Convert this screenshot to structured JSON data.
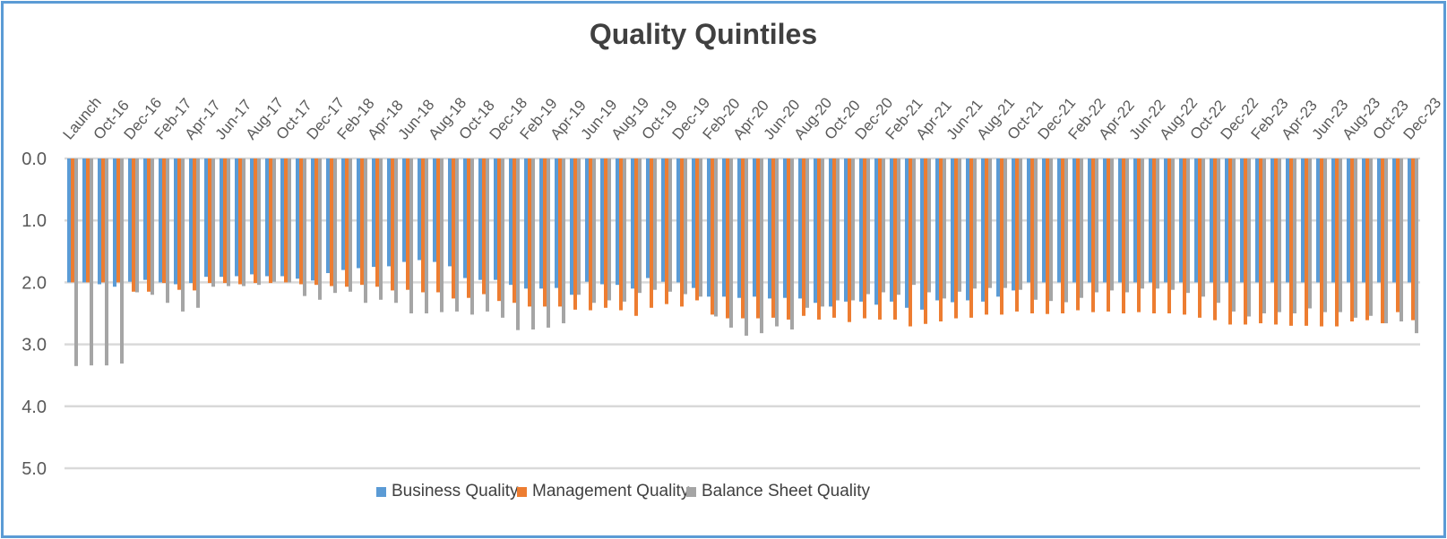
{
  "chart_data": {
    "type": "bar",
    "title": "Quality Quintiles",
    "xlabel": "",
    "ylabel": "",
    "ylim": [
      0,
      5
    ],
    "y_inverted": true,
    "y_ticks": [
      "0.0",
      "1.0",
      "2.0",
      "3.0",
      "4.0",
      "5.0"
    ],
    "grid": true,
    "legend_position": "bottom",
    "group_count": 89,
    "label_every": 2,
    "tick_labels": [
      "Launch",
      "Oct-16",
      "Dec-16",
      "Feb-17",
      "Apr-17",
      "Jun-17",
      "Aug-17",
      "Oct-17",
      "Dec-17",
      "Feb-18",
      "Apr-18",
      "Jun-18",
      "Aug-18",
      "Oct-18",
      "Dec-18",
      "Feb-19",
      "Apr-19",
      "Jun-19",
      "Aug-19",
      "Oct-19",
      "Dec-19",
      "Feb-20",
      "Apr-20",
      "Jun-20",
      "Aug-20",
      "Oct-20",
      "Dec-20",
      "Feb-21",
      "Apr-21",
      "Jun-21",
      "Aug-21",
      "Oct-21",
      "Dec-21",
      "Feb-22",
      "Apr-22",
      "Jun-22",
      "Aug-22",
      "Oct-22",
      "Dec-22",
      "Feb-23",
      "Apr-23",
      "Jun-23",
      "Aug-23",
      "Oct-23",
      "Dec-23"
    ],
    "series": [
      {
        "name": "Business Quality",
        "color": "#5b9bd5",
        "values": [
          2.0,
          2.0,
          2.03,
          2.07,
          1.99,
          1.96,
          2.0,
          2.03,
          2.01,
          1.91,
          1.91,
          1.9,
          1.87,
          1.9,
          1.9,
          1.94,
          1.97,
          1.85,
          1.8,
          1.77,
          1.75,
          1.74,
          1.67,
          1.64,
          1.67,
          1.74,
          1.93,
          1.96,
          1.96,
          2.04,
          2.1,
          2.1,
          2.09,
          2.2,
          1.99,
          2.03,
          2.04,
          2.1,
          1.93,
          1.99,
          2.0,
          2.09,
          2.23,
          2.23,
          2.25,
          2.23,
          2.26,
          2.25,
          2.26,
          2.33,
          2.39,
          2.31,
          2.31,
          2.36,
          2.31,
          2.41,
          2.44,
          2.29,
          2.32,
          2.29,
          2.31,
          2.23,
          2.13,
          2.0,
          2.0,
          2.0,
          2.0,
          2.0,
          2.0,
          2.0,
          2.0,
          2.0,
          2.0,
          2.0,
          2.0,
          2.0,
          2.0,
          2.0,
          2.0,
          2.0,
          2.0,
          2.0,
          2.0,
          2.0,
          2.0,
          2.0,
          2.0,
          2.0,
          2.0
        ]
      },
      {
        "name": "Management Quality",
        "color": "#ed7d31",
        "values": [
          2.0,
          2.0,
          2.0,
          2.0,
          2.15,
          2.15,
          2.01,
          2.12,
          2.13,
          2.01,
          2.01,
          2.03,
          2.01,
          2.01,
          2.0,
          2.03,
          2.04,
          2.06,
          2.07,
          2.04,
          2.07,
          2.13,
          2.12,
          2.16,
          2.16,
          2.26,
          2.25,
          2.19,
          2.3,
          2.33,
          2.39,
          2.39,
          2.39,
          2.44,
          2.45,
          2.41,
          2.45,
          2.54,
          2.41,
          2.35,
          2.39,
          2.29,
          2.52,
          2.58,
          2.58,
          2.58,
          2.57,
          2.6,
          2.54,
          2.6,
          2.57,
          2.64,
          2.58,
          2.6,
          2.6,
          2.71,
          2.67,
          2.63,
          2.58,
          2.57,
          2.52,
          2.52,
          2.47,
          2.5,
          2.51,
          2.5,
          2.45,
          2.48,
          2.47,
          2.5,
          2.48,
          2.5,
          2.5,
          2.52,
          2.57,
          2.61,
          2.68,
          2.68,
          2.66,
          2.68,
          2.7,
          2.7,
          2.71,
          2.71,
          2.63,
          2.61,
          2.66,
          2.48,
          2.61
        ]
      },
      {
        "name": "Balance Sheet Quality",
        "color": "#a5a5a5",
        "values": [
          3.35,
          3.34,
          3.34,
          3.31,
          2.16,
          2.2,
          2.33,
          2.47,
          2.41,
          2.07,
          2.06,
          2.06,
          2.04,
          1.99,
          2.0,
          2.22,
          2.28,
          2.17,
          2.15,
          2.33,
          2.28,
          2.33,
          2.5,
          2.5,
          2.48,
          2.47,
          2.52,
          2.47,
          2.57,
          2.77,
          2.76,
          2.73,
          2.66,
          2.2,
          2.33,
          2.29,
          2.31,
          2.17,
          2.12,
          2.15,
          2.19,
          2.23,
          2.55,
          2.73,
          2.86,
          2.82,
          2.71,
          2.76,
          2.41,
          2.39,
          2.29,
          2.29,
          2.19,
          2.16,
          2.2,
          2.04,
          2.16,
          2.26,
          2.15,
          2.1,
          2.09,
          2.09,
          2.12,
          2.28,
          2.3,
          2.32,
          2.25,
          2.16,
          2.13,
          2.16,
          2.1,
          2.1,
          2.12,
          2.17,
          2.23,
          2.33,
          2.47,
          2.55,
          2.5,
          2.48,
          2.5,
          2.42,
          2.48,
          2.48,
          2.57,
          2.54,
          2.66,
          2.63,
          2.82
        ]
      }
    ]
  }
}
